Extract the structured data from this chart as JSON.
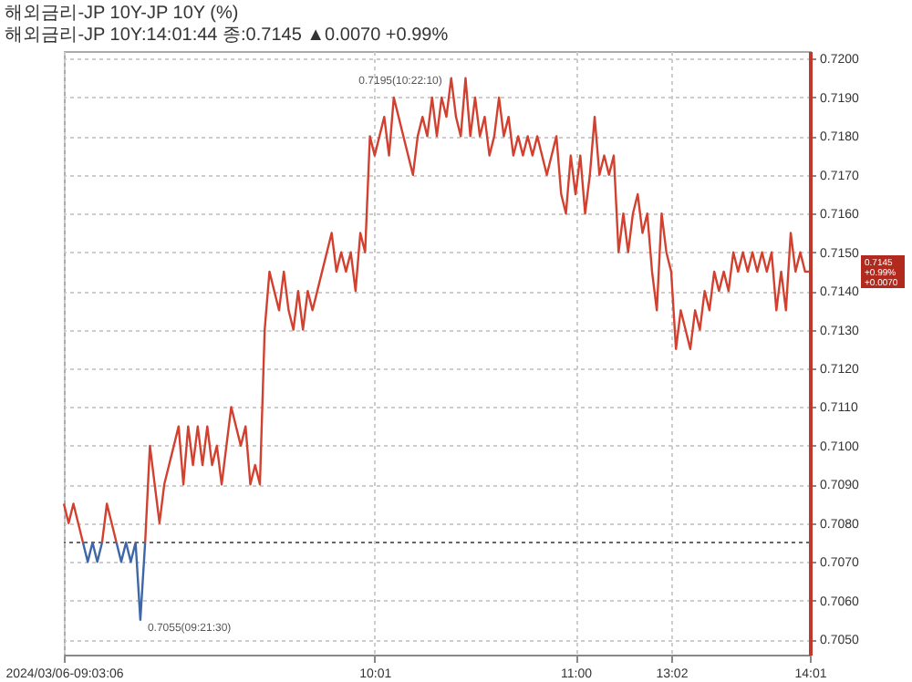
{
  "chart_data": {
    "type": "line",
    "title": "해외금리-JP   10Y-JP 10Y (%)",
    "subtitle": "해외금리-JP 10Y:14:01:44 종:0.7145 ▲0.0070 +0.99%",
    "categories": [
      "2024/03/06-09:03:06",
      null,
      null,
      null,
      null,
      null,
      null,
      null,
      null,
      null,
      null,
      null,
      null,
      null,
      null,
      null,
      null,
      null,
      null,
      null,
      null,
      null,
      null,
      null,
      null,
      null,
      null,
      null,
      null,
      null,
      null,
      null,
      null,
      null,
      null,
      null,
      null,
      null,
      null,
      null,
      null,
      null,
      null,
      null,
      null,
      null,
      null,
      null,
      null,
      null,
      null,
      null,
      null,
      null,
      null,
      null,
      null,
      null,
      null,
      null,
      null,
      null,
      null,
      null,
      null,
      "10:01",
      null,
      null,
      null,
      null,
      null,
      null,
      null,
      null,
      null,
      null,
      null,
      null,
      null,
      null,
      null,
      null,
      null,
      null,
      null,
      null,
      null,
      null,
      null,
      null,
      null,
      null,
      null,
      null,
      null,
      null,
      null,
      null,
      null,
      null,
      null,
      null,
      null,
      null,
      null,
      null,
      null,
      "11:00",
      null,
      null,
      null,
      null,
      null,
      null,
      null,
      null,
      null,
      null,
      null,
      null,
      null,
      null,
      null,
      null,
      null,
      null,
      null,
      "13:02",
      null,
      null,
      null,
      null,
      null,
      null,
      null,
      null,
      null,
      null,
      null,
      null,
      null,
      null,
      null,
      null,
      null,
      null,
      null,
      null,
      null,
      null,
      null,
      null,
      null,
      null,
      null,
      null,
      "14:01"
    ],
    "series": [
      {
        "color": "#d2412f",
        "values": [
          0.7085,
          0.708,
          0.7085,
          0.708,
          0.7075,
          null,
          null,
          null,
          0.7075,
          0.7085,
          0.708,
          0.7075,
          null,
          null,
          null,
          null,
          null,
          0.7075,
          0.71,
          0.709,
          0.708,
          0.709,
          0.7095,
          0.71,
          0.7105,
          0.709,
          0.7105,
          0.7095,
          0.7105,
          0.7095,
          0.7105,
          0.7095,
          0.71,
          0.709,
          0.71,
          0.711,
          0.7105,
          0.71,
          0.7105,
          0.709,
          0.7095,
          0.709,
          0.713,
          0.7145,
          0.714,
          0.7135,
          0.7145,
          0.7135,
          0.713,
          0.714,
          0.713,
          0.714,
          0.7135,
          0.714,
          0.7145,
          0.715,
          0.7155,
          0.7145,
          0.715,
          0.7145,
          0.715,
          0.714,
          0.7155,
          0.715,
          0.718,
          0.7175,
          0.718,
          0.7185,
          0.7175,
          0.719,
          0.7185,
          0.718,
          0.7175,
          0.717,
          0.718,
          0.7185,
          0.718,
          0.719,
          0.718,
          0.719,
          0.7185,
          0.7195,
          0.7185,
          0.718,
          0.7195,
          0.718,
          0.719,
          0.718,
          0.7185,
          0.7175,
          0.718,
          0.719,
          0.718,
          0.7185,
          0.7175,
          0.718,
          0.7175,
          0.718,
          0.7175,
          0.718,
          0.7175,
          0.717,
          0.7175,
          0.718,
          0.7165,
          0.716,
          0.7175,
          0.7165,
          0.7175,
          0.716,
          0.717,
          0.7185,
          0.717,
          0.7175,
          0.717,
          0.7175,
          0.715,
          0.716,
          0.715,
          0.716,
          0.7165,
          0.7155,
          0.716,
          0.7145,
          0.7135,
          0.716,
          0.715,
          0.7145,
          0.7125,
          0.7135,
          0.713,
          0.7125,
          0.7135,
          0.713,
          0.714,
          0.7135,
          0.7145,
          0.714,
          0.7145,
          0.714,
          0.715,
          0.7145,
          0.715,
          0.7145,
          0.715,
          0.7145,
          0.715,
          0.7145,
          0.715,
          0.7135,
          0.7145,
          0.7135,
          0.7155,
          0.7145,
          0.715,
          0.7145,
          0.7145
        ]
      },
      {
        "color": "#3f67a8",
        "values": [
          null,
          null,
          null,
          null,
          0.7075,
          0.707,
          0.7075,
          0.707,
          0.7075,
          null,
          null,
          0.7075,
          0.707,
          0.7075,
          0.707,
          0.7075,
          0.7055,
          0.7075,
          null,
          null,
          null,
          null,
          null,
          null,
          null,
          null,
          null,
          null,
          null,
          null,
          null,
          null,
          null,
          null,
          null,
          null,
          null,
          null,
          null,
          null,
          null,
          null,
          null,
          null,
          null,
          null,
          null,
          null,
          null,
          null,
          null,
          null,
          null,
          null,
          null,
          null,
          null,
          null,
          null,
          null,
          null,
          null,
          null,
          null,
          null,
          null,
          null,
          null,
          null,
          null,
          null,
          null,
          null,
          null,
          null,
          null,
          null,
          null,
          null,
          null,
          null,
          null,
          null,
          null,
          null,
          null,
          null,
          null,
          null,
          null,
          null,
          null,
          null,
          null,
          null,
          null,
          null,
          null,
          null,
          null,
          null,
          null,
          null,
          null,
          null,
          null,
          null,
          null,
          null,
          null,
          null,
          null,
          null,
          null,
          null,
          null,
          null,
          null,
          null,
          null,
          null,
          null,
          null,
          null,
          null,
          null,
          null,
          null,
          null,
          null,
          null,
          null,
          null,
          null,
          null,
          null,
          null,
          null,
          null,
          null,
          null,
          null,
          null,
          null,
          null,
          null,
          null,
          null,
          null,
          null,
          null,
          null,
          null,
          null,
          null,
          null,
          null
        ]
      }
    ],
    "ylim": [
      0.7046,
      0.7202
    ],
    "yticks": [
      {
        "value": 0.705,
        "label": "0.7050"
      },
      {
        "value": 0.706,
        "label": "0.7060"
      },
      {
        "value": 0.707,
        "label": "0.7070"
      },
      {
        "value": 0.708,
        "label": "0.7080"
      },
      {
        "value": 0.709,
        "label": "0.7090"
      },
      {
        "value": 0.71,
        "label": "0.7100"
      },
      {
        "value": 0.711,
        "label": "0.7110"
      },
      {
        "value": 0.712,
        "label": "0.7120"
      },
      {
        "value": 0.713,
        "label": "0.7130"
      },
      {
        "value": 0.714,
        "label": "0.7140"
      },
      {
        "value": 0.715,
        "label": "0.7150"
      },
      {
        "value": 0.716,
        "label": "0.7160"
      },
      {
        "value": 0.717,
        "label": "0.7170"
      },
      {
        "value": 0.718,
        "label": "0.7180"
      },
      {
        "value": 0.719,
        "label": "0.7190"
      },
      {
        "value": 0.72,
        "label": "0.7200"
      }
    ],
    "ref_lines": [
      {
        "axis": "y",
        "value": 0.7075,
        "color": "#666666",
        "line_style": "dotted"
      }
    ],
    "annotations": [
      "0.7195(10:22:10)",
      "0.7055(09:21:30)",
      "0.7145",
      "+0.99%",
      "+0.0070"
    ],
    "grid": true
  }
}
